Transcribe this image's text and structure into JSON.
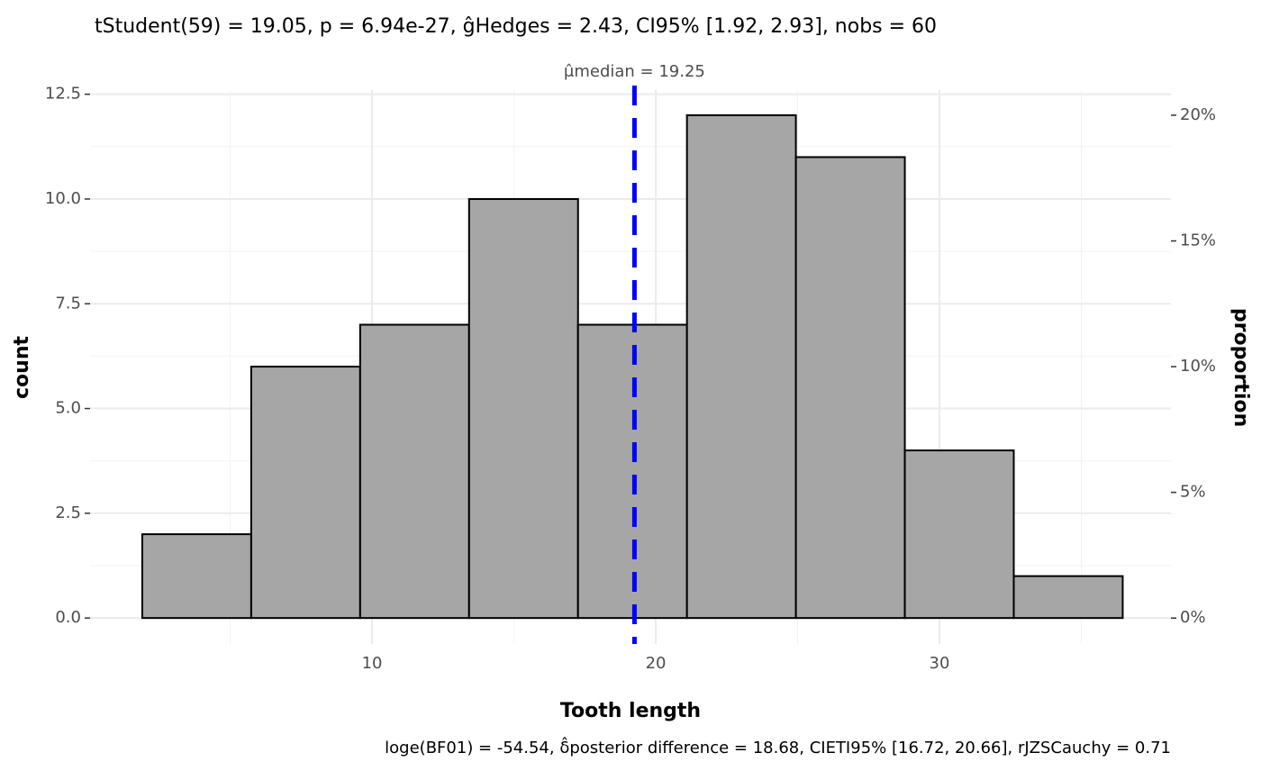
{
  "chart_data": {
    "type": "histogram",
    "title": "tStudent(59) = 19.05, p = 6.94e-27, ĝHedges = 2.43, CI95% [1.92, 2.93], nobs = 60",
    "caption": "loge(BF01) = -54.54, δ̂posterior difference = 18.68, CIETI95% [16.72, 20.66], rJZSCauchy = 0.71",
    "xlabel": "Tooth length",
    "ylabel": "count",
    "y2label": "proportion",
    "bins": [
      1.9,
      5.74,
      9.58,
      13.42,
      17.26,
      21.1,
      24.94,
      28.78,
      32.62,
      36.46
    ],
    "counts": [
      2,
      6,
      7,
      10,
      7,
      12,
      11,
      4,
      1
    ],
    "color": "#a6a6a6",
    "edgecolor": "#000000",
    "xlim": [
      0.06,
      38.16
    ],
    "ylim": [
      -0.62,
      12.6
    ],
    "y2lim": [
      -1.03,
      21.0
    ],
    "xticks": [
      10,
      20,
      30
    ],
    "x_minor_grid": [
      5,
      15,
      25,
      35
    ],
    "yticks": [
      {
        "value": 0,
        "label": "0.0"
      },
      2.5,
      {
        "value": 5,
        "label": "5.0"
      },
      7.5,
      {
        "value": 10,
        "label": "10.0"
      },
      12.5
    ],
    "y_minor_grid": [
      1.25,
      3.75,
      6.25,
      8.75,
      11.25
    ],
    "y2ticks": [
      {
        "value": 0,
        "label": "0%"
      },
      {
        "value": 5,
        "label": "5%"
      },
      {
        "value": 10,
        "label": "10%"
      },
      {
        "value": 15,
        "label": "15%"
      },
      {
        "value": 20,
        "label": "20%"
      }
    ],
    "grid": true,
    "median_line": {
      "value": 19.25,
      "label": "μ̂median = 19.25",
      "color": "#0000ff"
    }
  }
}
